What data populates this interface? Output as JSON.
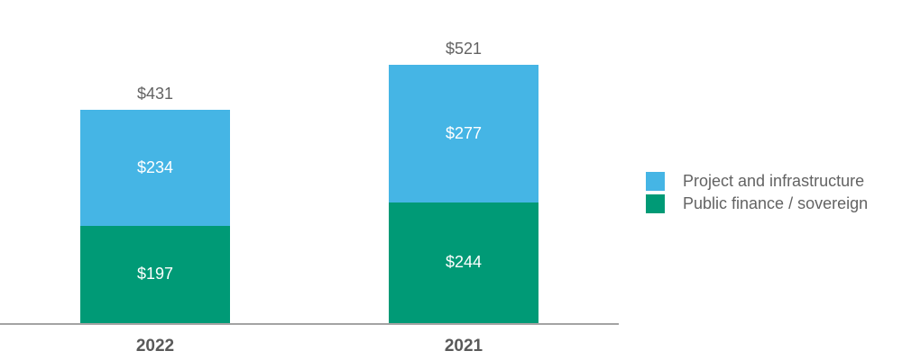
{
  "chart_data": {
    "type": "bar",
    "stacked": true,
    "orientation": "vertical",
    "categories": [
      "2022",
      "2021"
    ],
    "series": [
      {
        "name": "Project and infrastructure",
        "color": "#45b5e5",
        "values": [
          234,
          277
        ],
        "value_labels": [
          "$234",
          "$277"
        ],
        "stack_position": "top"
      },
      {
        "name": "Public finance / sovereign",
        "color": "#009a76",
        "values": [
          197,
          244
        ],
        "value_labels": [
          "$197",
          "$244"
        ],
        "stack_position": "bottom"
      }
    ],
    "totals": [
      431,
      521
    ],
    "total_labels": [
      "$431",
      "$521"
    ],
    "title": "",
    "xlabel": "",
    "ylabel": "",
    "grid": false,
    "y_axis_visible": false,
    "baseline_visible": true,
    "legend_position": "right"
  },
  "legend": {
    "items": [
      {
        "label": "Project and infrastructure",
        "color": "#45b5e5"
      },
      {
        "label": "Public finance / sovereign",
        "color": "#009a76"
      }
    ]
  },
  "colors": {
    "blue_segment": "#45b5e5",
    "green_segment": "#009a76",
    "total_label_text": "#636363",
    "category_label_text": "#595959",
    "segment_value_text": "#ffffff",
    "axis_line": "#a3a3a3",
    "background": "#ffffff"
  }
}
